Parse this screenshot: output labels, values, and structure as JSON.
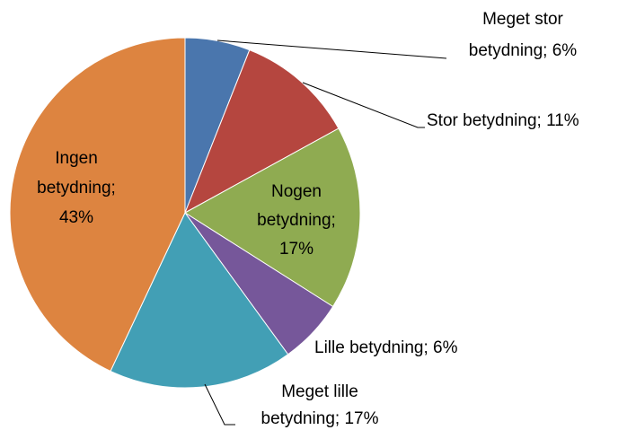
{
  "chart_data": {
    "type": "pie",
    "values": [
      6,
      11,
      17,
      6,
      17,
      43
    ],
    "value_labels": [
      [
        "Meget stor",
        "betydning; 6%"
      ],
      [
        "Stor betydning; 11%"
      ],
      [
        "Nogen",
        "betydning;",
        "17%"
      ],
      [
        "Lille betydning; 6%"
      ],
      [
        "Meget lille",
        "betydning; 17%"
      ],
      [
        "Ingen",
        "betydning;",
        "43%"
      ]
    ],
    "colors": [
      "#4a76ad",
      "#b5463f",
      "#8fab51",
      "#76579a",
      "#429fb5",
      "#dd8440"
    ]
  }
}
